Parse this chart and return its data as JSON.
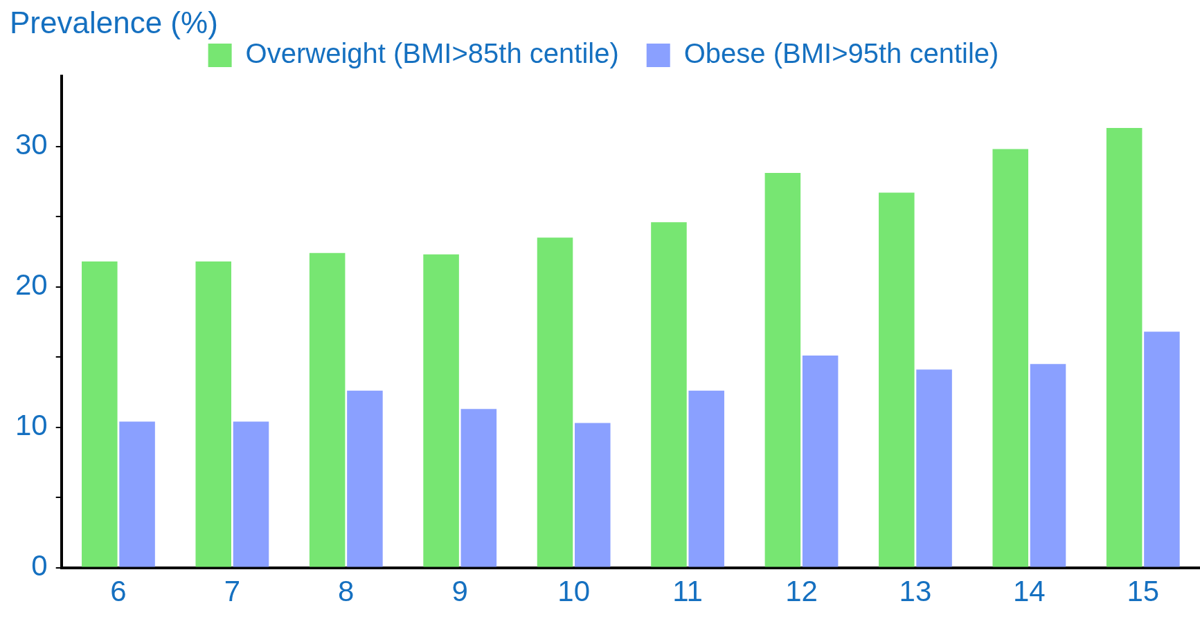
{
  "chart_data": {
    "type": "bar",
    "ylabel": "Prevalence (%)",
    "categories": [
      "6",
      "7",
      "8",
      "9",
      "10",
      "11",
      "12",
      "13",
      "14",
      "15"
    ],
    "series": [
      {
        "name": "Overweight (BMI>85th centile)",
        "color": "#77e672",
        "values": [
          21.8,
          21.8,
          22.4,
          22.3,
          23.5,
          24.6,
          28.1,
          26.7,
          29.8,
          31.3
        ]
      },
      {
        "name": "Obese (BMI>95th centile)",
        "color": "#8aa0ff",
        "values": [
          10.4,
          10.4,
          12.6,
          11.3,
          10.3,
          12.6,
          15.1,
          14.1,
          14.5,
          16.8
        ]
      }
    ],
    "ylim": [
      0,
      35
    ],
    "yticks": [
      0,
      {
        "value": 5,
        "label": null
      },
      10,
      {
        "value": 15,
        "label": null
      },
      20,
      {
        "value": 25,
        "label": null
      },
      30
    ],
    "grid": false,
    "legend": "top"
  }
}
